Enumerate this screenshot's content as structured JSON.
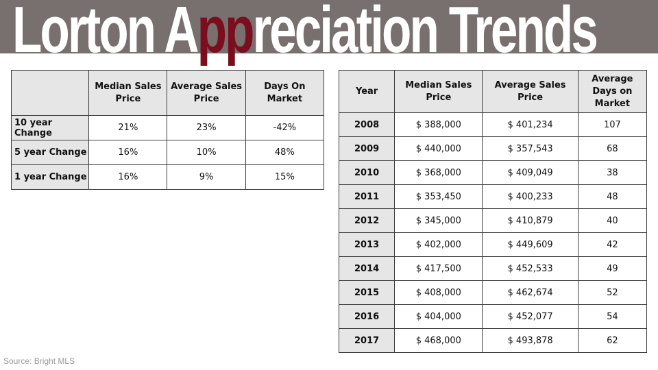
{
  "title": {
    "pre": "Lorton A",
    "accent": "pp",
    "post": "reciation Trends"
  },
  "summary_table": {
    "headers": [
      "",
      "Median Sales Price",
      "Average Sales Price",
      "Days On Market"
    ],
    "rows": [
      [
        "10 year Change",
        "21%",
        "23%",
        "-42%"
      ],
      [
        "5 year Change",
        "16%",
        "10%",
        "48%"
      ],
      [
        "1 year Change",
        "16%",
        "9%",
        "15%"
      ]
    ]
  },
  "yearly_table": {
    "headers": [
      "Year",
      "Median Sales Price",
      "Average Sales Price",
      "Average Days on Market"
    ],
    "rows": [
      [
        "2008",
        "$ 388,000",
        "$ 401,234",
        "107"
      ],
      [
        "2009",
        "$ 440,000",
        "$ 357,543",
        "68"
      ],
      [
        "2010",
        "$ 368,000",
        "$ 409,049",
        "38"
      ],
      [
        "2011",
        "$ 353,450",
        "$ 400,233",
        "48"
      ],
      [
        "2012",
        "$ 345,000",
        "$ 410,879",
        "40"
      ],
      [
        "2013",
        "$ 402,000",
        "$ 449,609",
        "42"
      ],
      [
        "2014",
        "$ 417,500",
        "$ 452,533",
        "49"
      ],
      [
        "2015",
        "$ 408,000",
        "$ 462,674",
        "52"
      ],
      [
        "2016",
        "$ 404,000",
        "$ 452,077",
        "54"
      ],
      [
        "2017",
        "$ 468,000",
        "$ 493,878",
        "62"
      ]
    ]
  },
  "source": "Source:  Bright MLS",
  "colors": {
    "title_bar": "#77706f",
    "accent": "#7a0d1e",
    "header_fill": "#e6e6e6"
  }
}
